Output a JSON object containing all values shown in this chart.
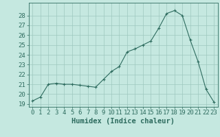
{
  "x": [
    0,
    1,
    2,
    3,
    4,
    5,
    6,
    7,
    8,
    9,
    10,
    11,
    12,
    13,
    14,
    15,
    16,
    17,
    18,
    19,
    20,
    21,
    22,
    23
  ],
  "y": [
    19.3,
    19.7,
    21.0,
    21.1,
    21.0,
    21.0,
    20.9,
    20.8,
    20.7,
    21.5,
    22.3,
    22.8,
    24.3,
    24.6,
    25.0,
    25.4,
    26.7,
    28.2,
    28.5,
    28.0,
    25.5,
    23.3,
    20.5,
    19.2
  ],
  "line_color": "#2d6b5e",
  "marker": "+",
  "marker_color": "#2d6b5e",
  "bg_color": "#c5e8e0",
  "grid_color": "#9dc8be",
  "axis_color": "#2d6b5e",
  "xlabel": "Humidex (Indice chaleur)",
  "xlim": [
    -0.5,
    23.5
  ],
  "ylim": [
    18.7,
    29.3
  ],
  "yticks": [
    19,
    20,
    21,
    22,
    23,
    24,
    25,
    26,
    27,
    28
  ],
  "xtick_labels": [
    "0",
    "1",
    "2",
    "3",
    "4",
    "5",
    "6",
    "7",
    "8",
    "9",
    "10",
    "11",
    "12",
    "13",
    "14",
    "15",
    "16",
    "17",
    "18",
    "19",
    "20",
    "21",
    "22",
    "23"
  ],
  "tick_fontsize": 6.5,
  "xlabel_fontsize": 7.5,
  "label_color": "#2d6b5e",
  "linewidth": 0.8,
  "markersize": 3.5,
  "markeredgewidth": 0.8
}
